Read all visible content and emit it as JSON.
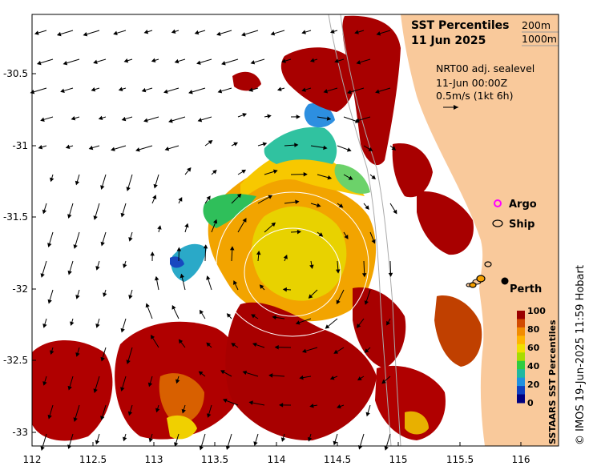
{
  "title": {
    "line1": "SST Percentiles",
    "line2": "11 Jun 2025"
  },
  "isobaths": {
    "label_200": "200m",
    "label_1000": "1000m"
  },
  "currents": {
    "source": "NRT00 adj. sealevel",
    "time": "11-Jun 00:00Z",
    "scale": "0.5m/s (1kt 6h)"
  },
  "legend": {
    "argo": "Argo",
    "ship": "Ship",
    "argo_color": "#ff00ff"
  },
  "place": {
    "city": "Perth"
  },
  "colorbar": {
    "title": "SSTAARS SST Percentiles",
    "ticks": [
      "100",
      "80",
      "60",
      "40",
      "20",
      "0"
    ],
    "colors": [
      "#9b0000",
      "#d24a00",
      "#f28c00",
      "#ffb400",
      "#f0e000",
      "#a8dc00",
      "#2ecc40",
      "#20b8a0",
      "#2090e0",
      "#1040c0",
      "#000080"
    ]
  },
  "axes": {
    "x_ticks": [
      "112",
      "112.5",
      "113",
      "113.5",
      "114",
      "114.5",
      "115",
      "115.5",
      "116"
    ],
    "y_ticks": [
      "-30.5",
      "-31",
      "-31.5",
      "-32",
      "-32.5",
      "-33"
    ]
  },
  "credit": "© IMOS 19-Jun-2025 11:59 Hobart",
  "colors": {
    "land": "#f9c99b",
    "sea_hot": "#a80000",
    "sea_warm": "#f5a000",
    "sea_mid": "#e0d800",
    "sea_cool": "#20c060",
    "sea_cold": "#2060d0"
  }
}
